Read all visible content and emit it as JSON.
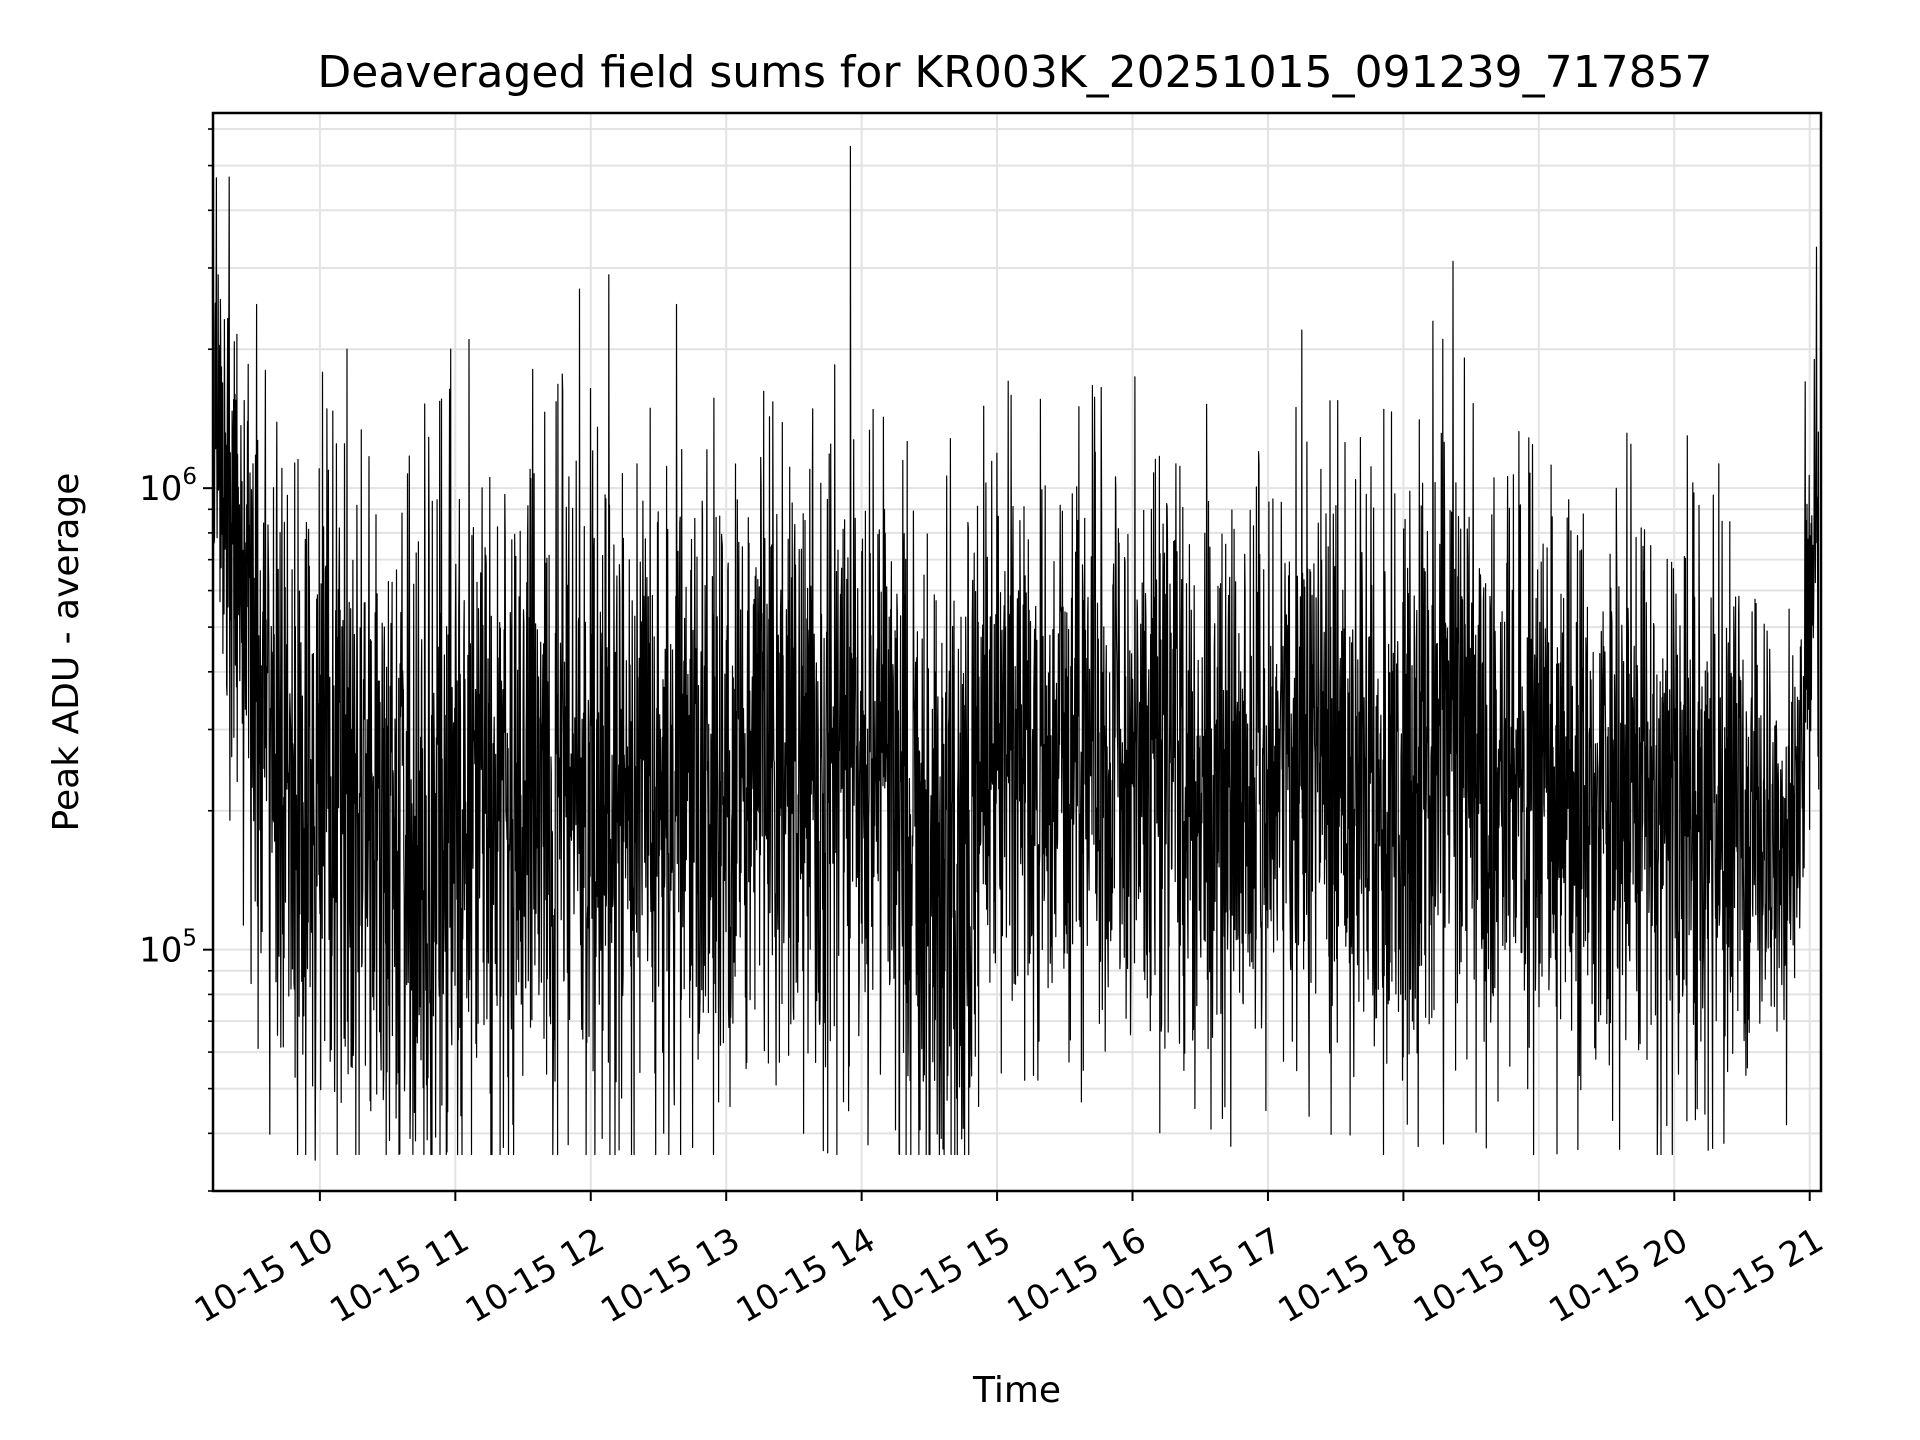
{
  "chart_data": {
    "type": "line",
    "title": "Deaveraged field sums for KR003K_20251015_091239_717857",
    "xlabel": "Time",
    "ylabel": "Peak ADU - average",
    "xscale": "time",
    "yscale": "log",
    "xlim": [
      "2025-10-15T09:12:39",
      "2025-10-15T21:05:00"
    ],
    "ylim": [
      30000,
      6500000
    ],
    "grid": true,
    "line_color": "#000000",
    "grid_color": "#e3e3e3",
    "x_ticks": [
      {
        "value": "2025-10-15T10:00",
        "label": "10-15 10"
      },
      {
        "value": "2025-10-15T11:00",
        "label": "10-15 11"
      },
      {
        "value": "2025-10-15T12:00",
        "label": "10-15 12"
      },
      {
        "value": "2025-10-15T13:00",
        "label": "10-15 13"
      },
      {
        "value": "2025-10-15T14:00",
        "label": "10-15 14"
      },
      {
        "value": "2025-10-15T15:00",
        "label": "10-15 15"
      },
      {
        "value": "2025-10-15T16:00",
        "label": "10-15 16"
      },
      {
        "value": "2025-10-15T17:00",
        "label": "10-15 17"
      },
      {
        "value": "2025-10-15T18:00",
        "label": "10-15 18"
      },
      {
        "value": "2025-10-15T19:00",
        "label": "10-15 19"
      },
      {
        "value": "2025-10-15T20:00",
        "label": "10-15 20"
      },
      {
        "value": "2025-10-15T21:00",
        "label": "10-15 21"
      }
    ],
    "y_ticks": [
      {
        "value": 100000,
        "base": "10",
        "exponent": "5"
      },
      {
        "value": 1000000,
        "base": "10",
        "exponent": "6"
      }
    ],
    "series": [
      {
        "x_start": "2025-10-15T09:13",
        "x_end": "2025-10-15T21:04",
        "points_per_hour": 370,
        "anchor_times": [
          "2025-10-15T09:13",
          "2025-10-15T09:20",
          "2025-10-15T09:35",
          "2025-10-15T09:50",
          "2025-10-15T10:10",
          "2025-10-15T10:30",
          "2025-10-15T10:50",
          "2025-10-15T11:10",
          "2025-10-15T11:30",
          "2025-10-15T11:50",
          "2025-10-15T12:10",
          "2025-10-15T12:30",
          "2025-10-15T12:50",
          "2025-10-15T13:10",
          "2025-10-15T13:30",
          "2025-10-15T13:50",
          "2025-10-15T14:10",
          "2025-10-15T14:30",
          "2025-10-15T14:45",
          "2025-10-15T15:00",
          "2025-10-15T15:20",
          "2025-10-15T15:40",
          "2025-10-15T16:00",
          "2025-10-15T16:20",
          "2025-10-15T16:40",
          "2025-10-15T17:00",
          "2025-10-15T17:20",
          "2025-10-15T17:40",
          "2025-10-15T18:00",
          "2025-10-15T18:20",
          "2025-10-15T18:40",
          "2025-10-15T19:00",
          "2025-10-15T19:20",
          "2025-10-15T19:40",
          "2025-10-15T20:00",
          "2025-10-15T20:20",
          "2025-10-15T20:40",
          "2025-10-15T20:55",
          "2025-10-15T21:04"
        ],
        "anchor_median": [
          1300000,
          900000,
          300000,
          200000,
          210000,
          200000,
          170000,
          220000,
          210000,
          230000,
          200000,
          220000,
          230000,
          260000,
          260000,
          230000,
          250000,
          160000,
          140000,
          300000,
          260000,
          280000,
          280000,
          250000,
          230000,
          240000,
          260000,
          230000,
          230000,
          290000,
          230000,
          210000,
          220000,
          230000,
          220000,
          190000,
          180000,
          180000,
          900000
        ],
        "anchor_spread": [
          0.55,
          0.65,
          0.75,
          0.85,
          0.85,
          0.85,
          0.85,
          0.85,
          0.85,
          0.8,
          0.8,
          0.75,
          0.75,
          0.72,
          0.72,
          0.75,
          0.8,
          0.85,
          0.85,
          0.75,
          0.7,
          0.7,
          0.72,
          0.75,
          0.72,
          0.7,
          0.7,
          0.75,
          0.72,
          0.8,
          0.72,
          0.7,
          0.7,
          0.72,
          0.72,
          0.7,
          0.62,
          0.55,
          0.55
        ],
        "extremes": [
          {
            "time": "2025-10-15T09:15",
            "value": 2900000
          },
          {
            "time": "2025-10-15T09:32",
            "value": 2500000
          },
          {
            "time": "2025-10-15T09:58",
            "value": 35000
          },
          {
            "time": "2025-10-15T10:12",
            "value": 2000000
          },
          {
            "time": "2025-10-15T10:40",
            "value": 39000
          },
          {
            "time": "2025-10-15T10:58",
            "value": 2000000
          },
          {
            "time": "2025-10-15T11:06",
            "value": 2100000
          },
          {
            "time": "2025-10-15T11:55",
            "value": 2700000
          },
          {
            "time": "2025-10-15T12:05",
            "value": 39000
          },
          {
            "time": "2025-10-15T12:08",
            "value": 2900000
          },
          {
            "time": "2025-10-15T12:38",
            "value": 2500000
          },
          {
            "time": "2025-10-15T13:48",
            "value": 1850000
          },
          {
            "time": "2025-10-15T13:55",
            "value": 5500000
          },
          {
            "time": "2025-10-15T14:36",
            "value": 37000
          },
          {
            "time": "2025-10-15T14:45",
            "value": 41000
          },
          {
            "time": "2025-10-15T17:15",
            "value": 2200000
          },
          {
            "time": "2025-10-15T18:13",
            "value": 2300000
          },
          {
            "time": "2025-10-15T18:22",
            "value": 3100000
          },
          {
            "time": "2025-10-15T18:55",
            "value": 50000
          },
          {
            "time": "2025-10-15T21:02",
            "value": 1900000
          }
        ]
      }
    ]
  }
}
